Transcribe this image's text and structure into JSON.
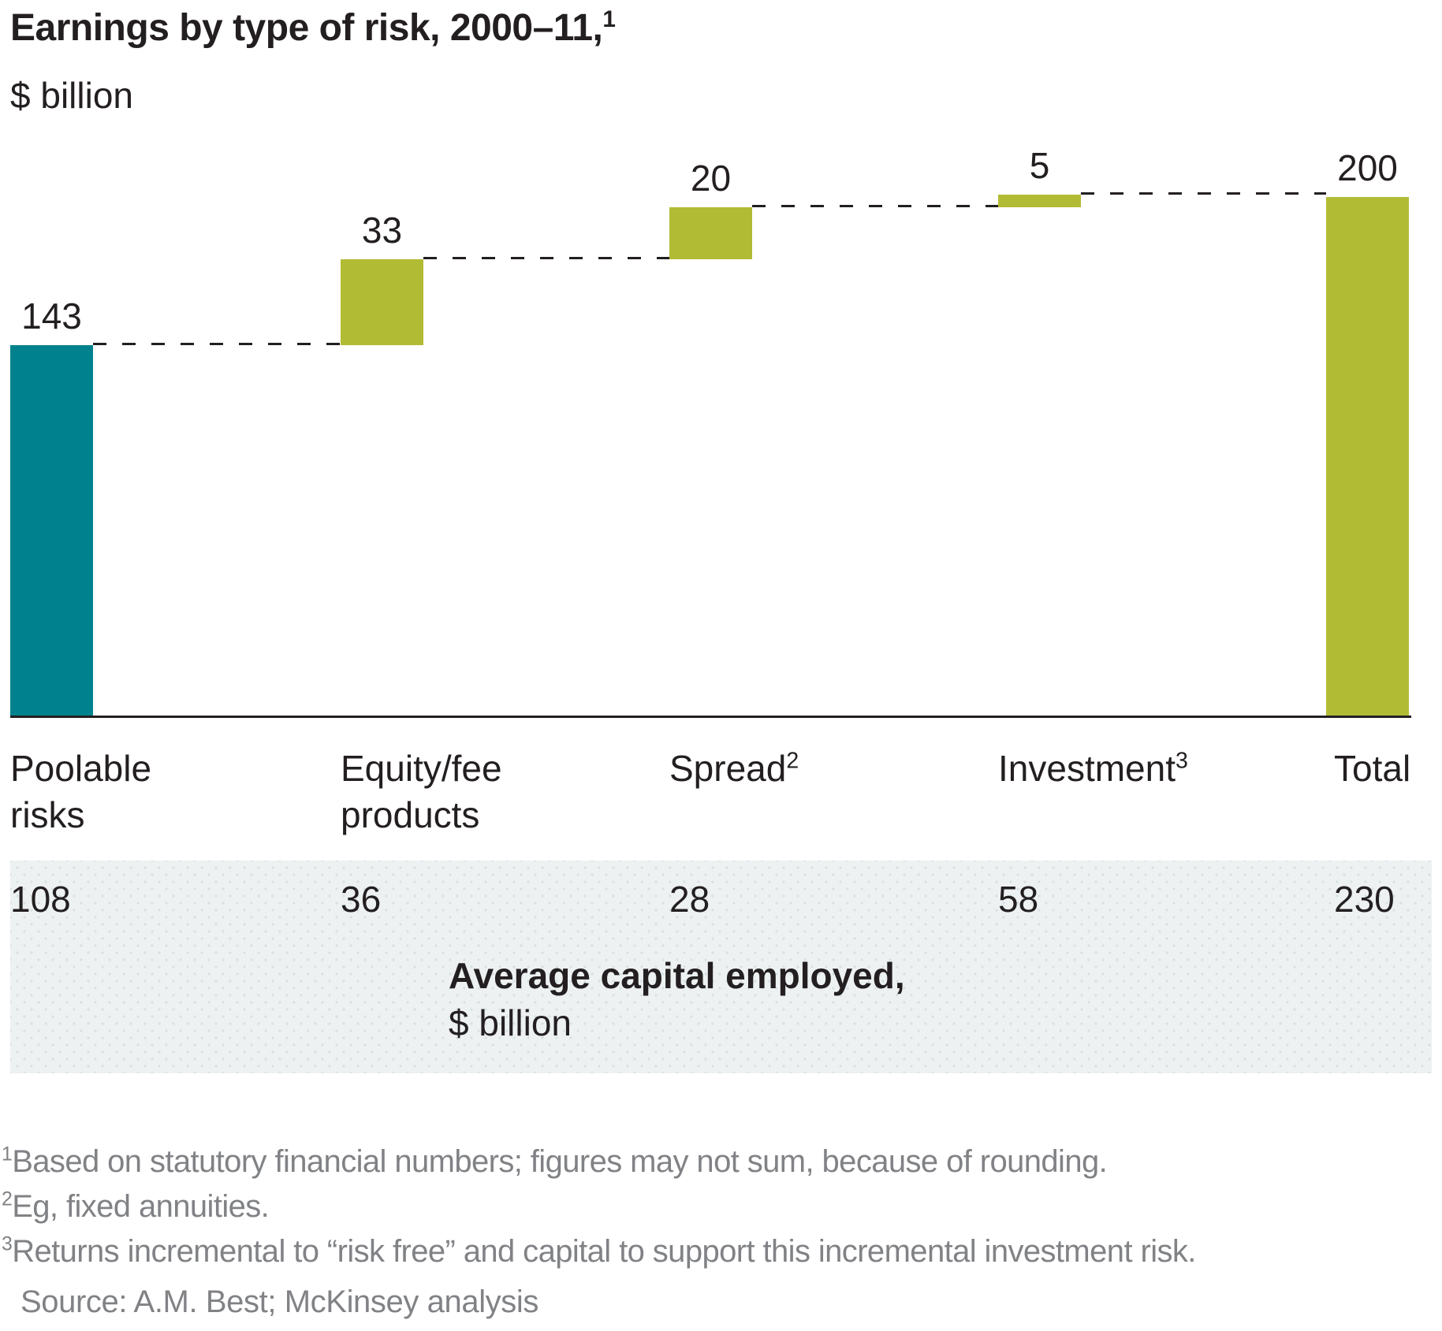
{
  "header": {
    "title": "Earnings by type of risk, 2000–11,",
    "title_sup": "1",
    "subtitle": "$ billion"
  },
  "chart_data": {
    "type": "bar",
    "subtype": "waterfall",
    "title": "Earnings by type of risk, 2000–11",
    "unit": "$ billion",
    "ylim": [
      0,
      215
    ],
    "grid": false,
    "legend": "none",
    "categories": [
      "Poolable risks",
      "Equity/fee products",
      "Spread",
      "Investment",
      "Total"
    ],
    "values": [
      143,
      33,
      20,
      5,
      200
    ],
    "segments": [
      {
        "id": "poolable-risks",
        "label": "Poolable risks",
        "sup": "",
        "value": 143,
        "start": 0,
        "end": 143,
        "color": "#00828e",
        "role": "start"
      },
      {
        "id": "equity-fee-products",
        "label": "Equity/fee products",
        "sup": "",
        "value": 33,
        "start": 143,
        "end": 176,
        "color": "#b2bb34",
        "role": "increase"
      },
      {
        "id": "spread",
        "label": "Spread",
        "sup": "2",
        "value": 20,
        "start": 176,
        "end": 196,
        "color": "#b2bb34",
        "role": "increase"
      },
      {
        "id": "investment",
        "label": "Investment",
        "sup": "3",
        "value": 5,
        "start": 196,
        "end": 201,
        "color": "#b2bb34",
        "role": "increase"
      },
      {
        "id": "total",
        "label": "Total",
        "sup": "",
        "value": 200,
        "start": 0,
        "end": 200,
        "color": "#b2bb34",
        "role": "total"
      }
    ],
    "connector_levels": [
      143,
      176,
      196,
      201
    ],
    "colors": {
      "start_bar": "#00828e",
      "other_bars": "#b2bb34",
      "axis": "#231f20",
      "text": "#231f20",
      "footnote_text": "#808285",
      "band_background": "#edf1f2",
      "band_dots": "#d7e0e4"
    }
  },
  "capital_band": {
    "values": [
      "108",
      "36",
      "28",
      "58",
      "230"
    ],
    "title_bold": "Average capital employed,",
    "title_sub": "$ billion"
  },
  "footnotes": [
    {
      "sup": "1",
      "text": "Based on statutory financial numbers; figures may not sum, because of rounding."
    },
    {
      "sup": "2",
      "text": "Eg, fixed annuities."
    },
    {
      "sup": "3",
      "text": "Returns incremental to “risk free” and capital to support this incremental investment risk."
    }
  ],
  "source": "Source: A.M. Best; McKinsey analysis"
}
